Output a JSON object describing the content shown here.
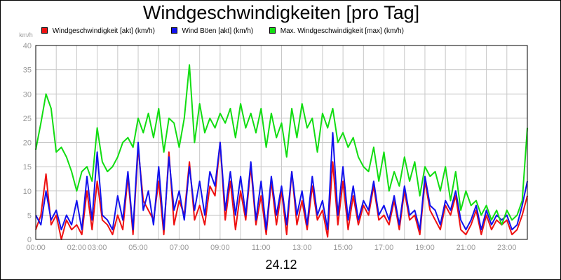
{
  "chart_data": {
    "type": "line",
    "title": "Windgeschwindigkeiten [pro Tag]",
    "xlabel": "24.12",
    "ylabel": "km/h",
    "ylim": [
      0,
      40
    ],
    "yticks": [
      0,
      5,
      10,
      15,
      20,
      25,
      30,
      35,
      40
    ],
    "xlim": [
      0,
      24
    ],
    "xticks": [
      {
        "value": 0,
        "label": "00:00"
      },
      {
        "value": 2,
        "label": "02:00"
      },
      {
        "value": 3,
        "label": "03:00"
      },
      {
        "value": 5,
        "label": "05:00"
      },
      {
        "value": 7,
        "label": "07:00"
      },
      {
        "value": 9,
        "label": "09:00"
      },
      {
        "value": 11,
        "label": "11:00"
      },
      {
        "value": 13,
        "label": "13:00"
      },
      {
        "value": 15,
        "label": "15:00"
      },
      {
        "value": 17,
        "label": "17:00"
      },
      {
        "value": 19,
        "label": "19:00"
      },
      {
        "value": 21,
        "label": "21:00"
      },
      {
        "value": 23,
        "label": "23:00"
      }
    ],
    "grid": true,
    "legend_position": "top",
    "series": [
      {
        "name": "Windgeschwindigkeit [akt] (km/h)",
        "color": "#ee1111",
        "x": [
          0.0,
          0.25,
          0.5,
          0.75,
          1.0,
          1.25,
          1.5,
          1.75,
          2.0,
          2.25,
          2.5,
          2.75,
          3.0,
          3.25,
          3.5,
          3.75,
          4.0,
          4.25,
          4.5,
          4.75,
          5.0,
          5.25,
          5.5,
          5.75,
          6.0,
          6.25,
          6.5,
          6.75,
          7.0,
          7.25,
          7.5,
          7.75,
          8.0,
          8.25,
          8.5,
          8.75,
          9.0,
          9.25,
          9.5,
          9.75,
          10.0,
          10.25,
          10.5,
          10.75,
          11.0,
          11.25,
          11.5,
          11.75,
          12.0,
          12.25,
          12.5,
          12.75,
          13.0,
          13.25,
          13.5,
          13.75,
          14.0,
          14.25,
          14.5,
          14.75,
          15.0,
          15.25,
          15.5,
          15.75,
          16.0,
          16.25,
          16.5,
          16.75,
          17.0,
          17.25,
          17.5,
          17.75,
          18.0,
          18.25,
          18.5,
          18.75,
          19.0,
          19.25,
          19.5,
          19.75,
          20.0,
          20.25,
          20.5,
          20.75,
          21.0,
          21.25,
          21.5,
          21.75,
          22.0,
          22.25,
          22.5,
          22.75,
          23.0,
          23.25,
          23.5,
          23.75,
          24.0
        ],
        "values": [
          2,
          5,
          13.5,
          3,
          5,
          0,
          4,
          2,
          3,
          1,
          10,
          2,
          12,
          4,
          3,
          1,
          5,
          2,
          13,
          1,
          19,
          8,
          6,
          4,
          12,
          1,
          18,
          3,
          8,
          5,
          16,
          4,
          7,
          3,
          11,
          9,
          20,
          4,
          12,
          2,
          10,
          4,
          15,
          3,
          9,
          1,
          12,
          3,
          10,
          1,
          14,
          3,
          8,
          2,
          11,
          4,
          6,
          0.5,
          16,
          3,
          12,
          2,
          9,
          3,
          7,
          5,
          11,
          4,
          5,
          3,
          8,
          2,
          10,
          4,
          5,
          1,
          12,
          6,
          4,
          2,
          7,
          5,
          9,
          2,
          1,
          3,
          6,
          1,
          5,
          2,
          4,
          3,
          4,
          1,
          2,
          5,
          9
        ]
      },
      {
        "name": "Wind Böen [akt] (km/h)",
        "color": "#1111ee",
        "x": [
          0.0,
          0.25,
          0.5,
          0.75,
          1.0,
          1.25,
          1.5,
          1.75,
          2.0,
          2.25,
          2.5,
          2.75,
          3.0,
          3.25,
          3.5,
          3.75,
          4.0,
          4.25,
          4.5,
          4.75,
          5.0,
          5.25,
          5.5,
          5.75,
          6.0,
          6.25,
          6.5,
          6.75,
          7.0,
          7.25,
          7.5,
          7.75,
          8.0,
          8.25,
          8.5,
          8.75,
          9.0,
          9.25,
          9.5,
          9.75,
          10.0,
          10.25,
          10.5,
          10.75,
          11.0,
          11.25,
          11.5,
          11.75,
          12.0,
          12.25,
          12.5,
          12.75,
          13.0,
          13.25,
          13.5,
          13.75,
          14.0,
          14.25,
          14.5,
          14.75,
          15.0,
          15.25,
          15.5,
          15.75,
          16.0,
          16.25,
          16.5,
          16.75,
          17.0,
          17.25,
          17.5,
          17.75,
          18.0,
          18.25,
          18.5,
          18.75,
          19.0,
          19.25,
          19.5,
          19.75,
          20.0,
          20.25,
          20.5,
          20.75,
          21.0,
          21.25,
          21.5,
          21.75,
          22.0,
          22.25,
          22.5,
          22.75,
          23.0,
          23.25,
          23.5,
          23.75,
          24.0
        ],
        "values": [
          5,
          3,
          10,
          4,
          6,
          2,
          5,
          3,
          8,
          2,
          13,
          4,
          18,
          5,
          4,
          2,
          9,
          4,
          14,
          2,
          20,
          6,
          10,
          3,
          15,
          2,
          17,
          6,
          10,
          4,
          15,
          6,
          12,
          5,
          14,
          11,
          20,
          6,
          14,
          5,
          13,
          5,
          16,
          4,
          12,
          2,
          13,
          5,
          11,
          3,
          14,
          5,
          10,
          3,
          13,
          5,
          8,
          2,
          22,
          5,
          15,
          4,
          11,
          4,
          8,
          6,
          12,
          5,
          7,
          4,
          9,
          3,
          11,
          5,
          6,
          2,
          13,
          7,
          6,
          3,
          8,
          6,
          10,
          4,
          2,
          4,
          7,
          2,
          6,
          3,
          5,
          4,
          5,
          2,
          3,
          7,
          12
        ]
      },
      {
        "name": "Max. Windgeschwindigkeit [max] (km/h)",
        "color": "#11dd11",
        "x": [
          0.0,
          0.25,
          0.5,
          0.75,
          1.0,
          1.25,
          1.5,
          1.75,
          2.0,
          2.25,
          2.5,
          2.75,
          3.0,
          3.25,
          3.5,
          3.75,
          4.0,
          4.25,
          4.5,
          4.75,
          5.0,
          5.25,
          5.5,
          5.75,
          6.0,
          6.25,
          6.5,
          6.75,
          7.0,
          7.25,
          7.5,
          7.75,
          8.0,
          8.25,
          8.5,
          8.75,
          9.0,
          9.25,
          9.5,
          9.75,
          10.0,
          10.25,
          10.5,
          10.75,
          11.0,
          11.25,
          11.5,
          11.75,
          12.0,
          12.25,
          12.5,
          12.75,
          13.0,
          13.25,
          13.5,
          13.75,
          14.0,
          14.25,
          14.5,
          14.75,
          15.0,
          15.25,
          15.5,
          15.75,
          16.0,
          16.25,
          16.5,
          16.75,
          17.0,
          17.25,
          17.5,
          17.75,
          18.0,
          18.25,
          18.5,
          18.75,
          19.0,
          19.25,
          19.5,
          19.75,
          20.0,
          20.25,
          20.5,
          20.75,
          21.0,
          21.25,
          21.5,
          21.75,
          22.0,
          22.25,
          22.5,
          22.75,
          23.0,
          23.25,
          23.5,
          23.75,
          24.0
        ],
        "values": [
          18.5,
          24,
          30,
          27,
          18,
          19,
          17,
          14,
          10,
          14,
          15,
          12,
          23,
          16,
          14,
          15,
          17,
          20,
          21,
          19,
          25,
          22,
          26,
          21,
          27,
          18,
          25,
          24,
          19,
          25,
          36,
          20,
          28,
          22,
          25,
          23,
          26,
          24,
          27,
          21,
          28,
          23,
          26,
          22,
          27,
          19,
          26,
          21,
          24,
          17,
          27,
          21,
          28,
          23,
          25,
          18,
          26,
          23,
          27,
          20,
          22,
          19,
          21,
          17,
          15,
          14,
          19,
          12,
          18,
          10,
          14,
          11,
          17,
          12,
          16,
          9,
          15,
          13,
          14,
          10,
          15,
          8,
          14,
          6,
          10,
          7,
          8,
          5,
          7,
          4,
          6,
          3,
          6,
          4,
          5,
          8,
          23
        ]
      }
    ]
  }
}
